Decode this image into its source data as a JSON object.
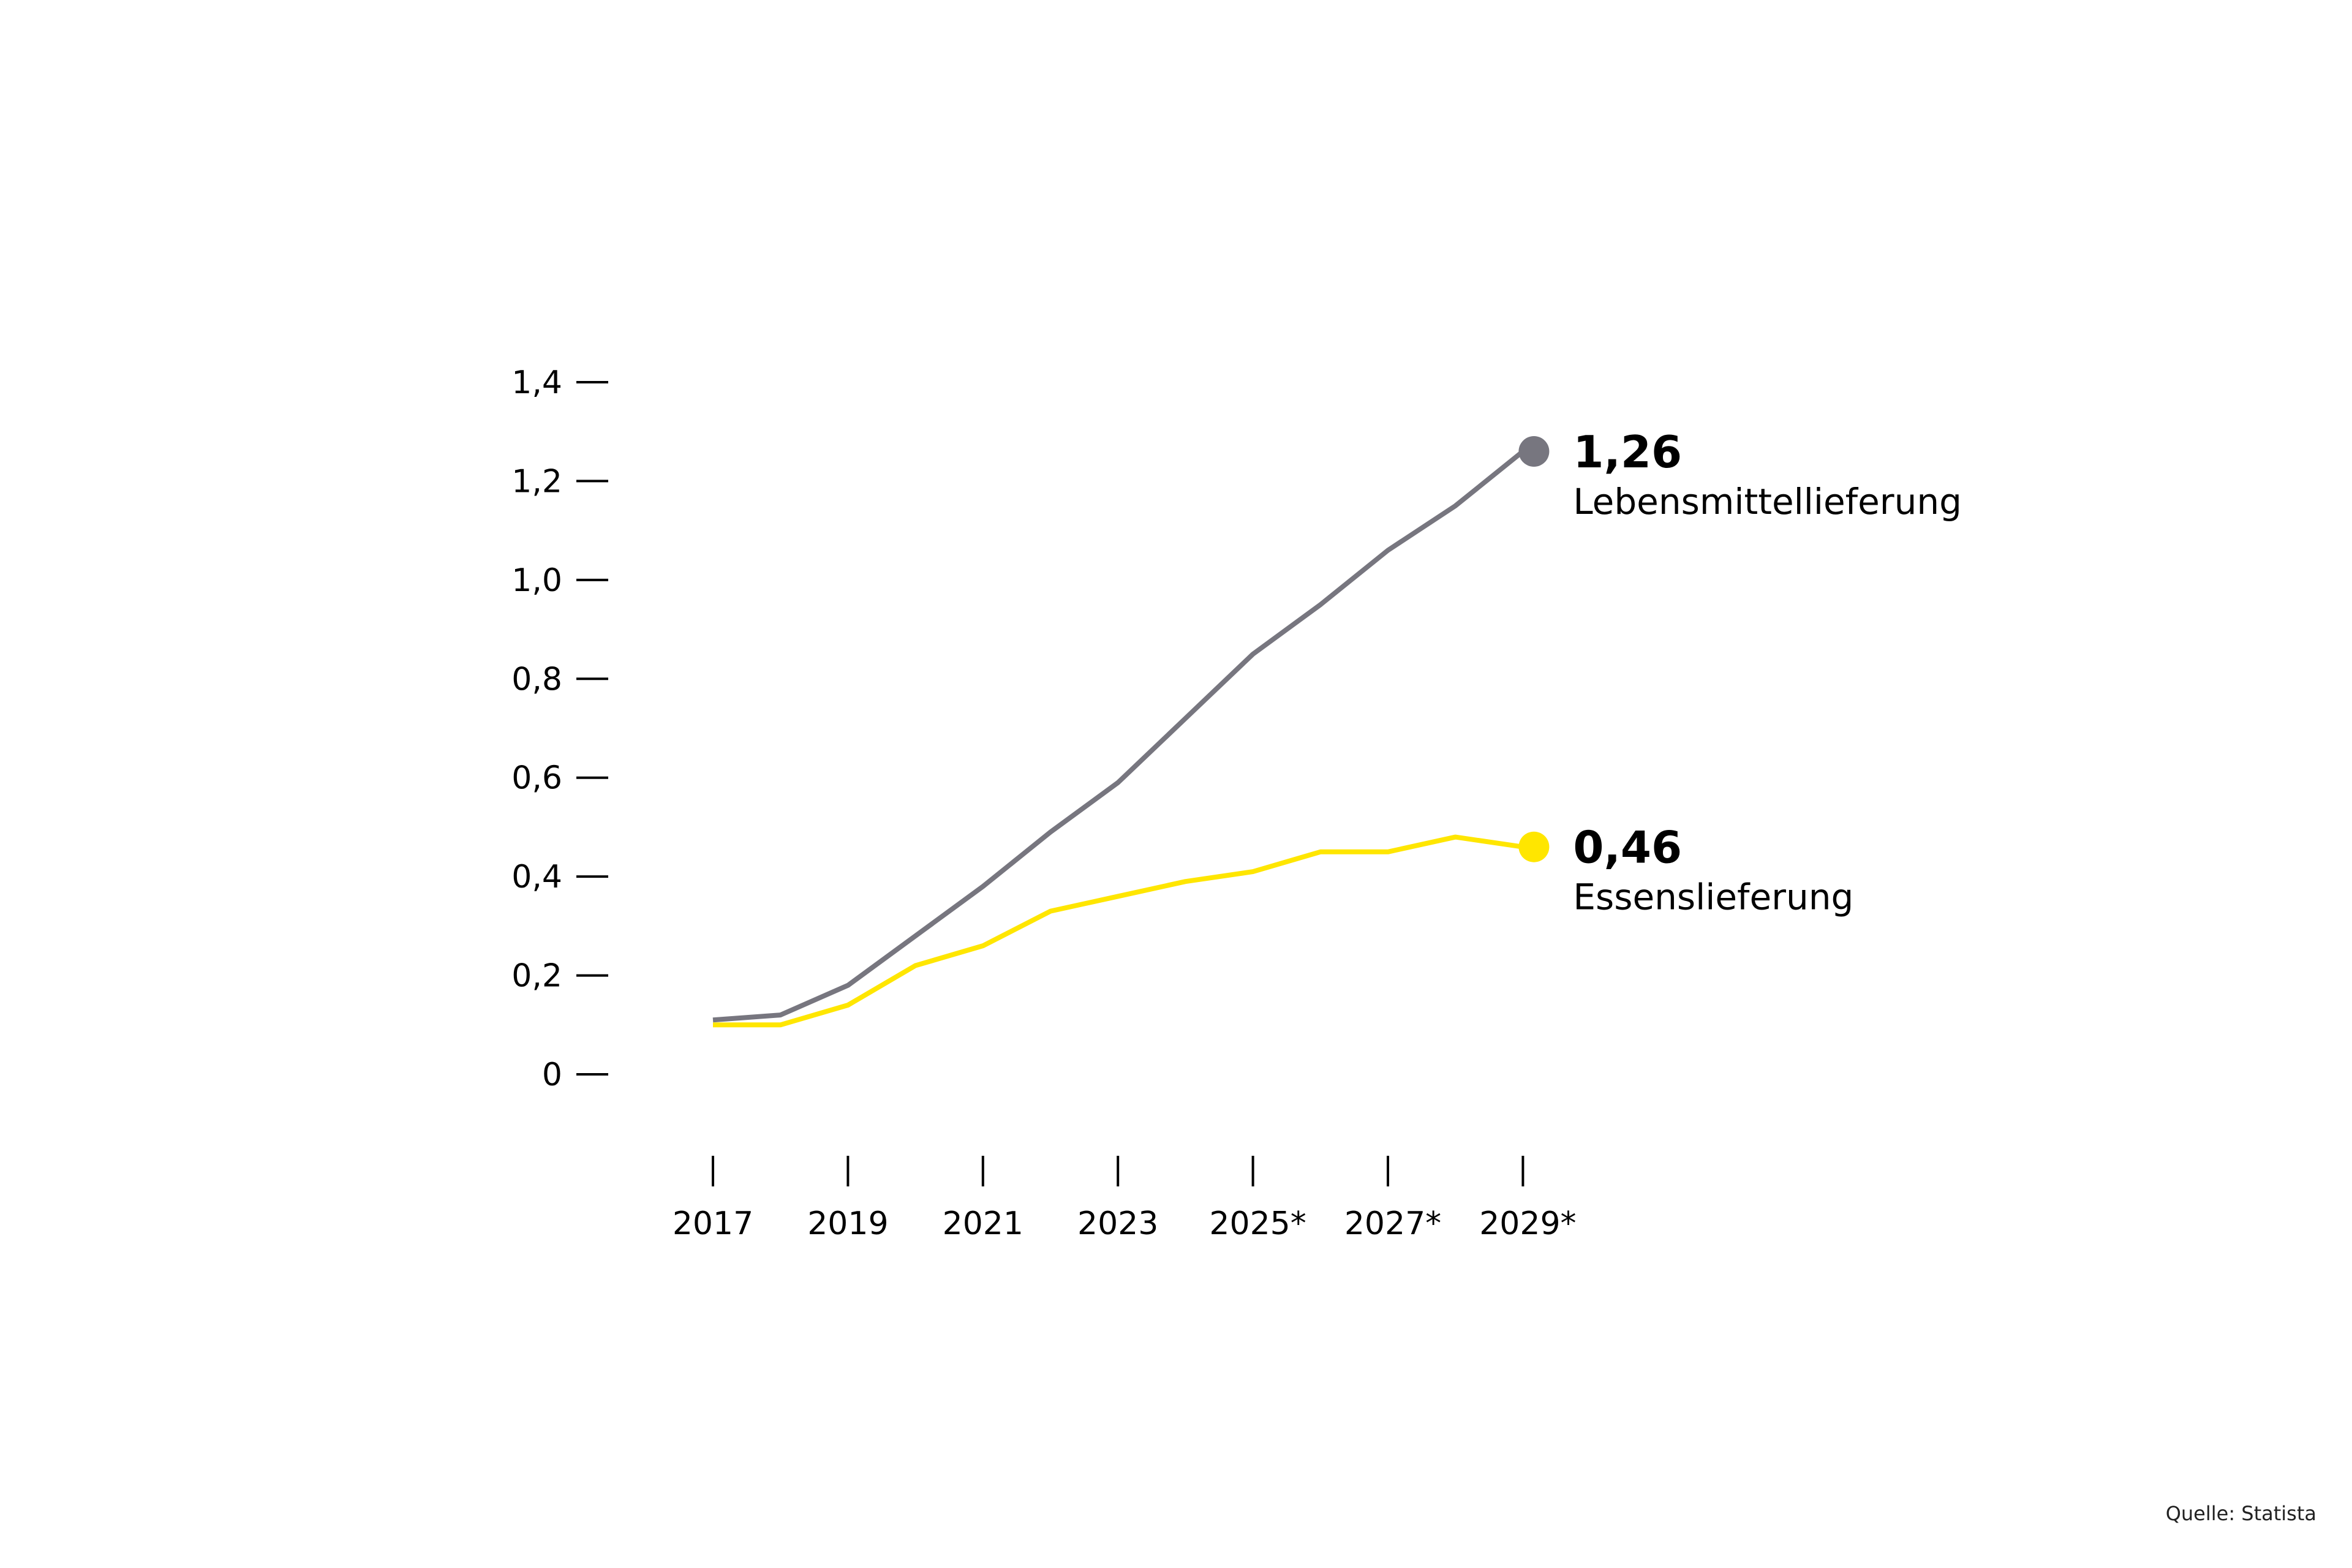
{
  "chart_data": {
    "type": "line",
    "title": "",
    "xlabel": "",
    "ylabel": "",
    "x": [
      2017,
      2018,
      2019,
      2020,
      2021,
      2022,
      2023,
      2024,
      2025,
      2026,
      2027,
      2028,
      2029
    ],
    "x_tick_labels": [
      "2017",
      "2019",
      "2021",
      "2023",
      "2025*",
      "2027*",
      "2029*"
    ],
    "y_tick_labels": [
      "0",
      "0,2",
      "0,4",
      "0,6",
      "0,8",
      "1,0",
      "1,2",
      "1,4"
    ],
    "ylim": [
      0,
      1.4
    ],
    "grid": false,
    "series": [
      {
        "name": "Lebensmittellieferung",
        "color": "#77767f",
        "end_label": "1,26",
        "values": [
          0.11,
          0.12,
          0.18,
          0.28,
          0.38,
          0.49,
          0.59,
          0.72,
          0.85,
          0.95,
          1.06,
          1.15,
          1.26
        ]
      },
      {
        "name": "Essenslieferung",
        "color": "#ffe600",
        "end_label": "0,46",
        "values": [
          0.1,
          0.1,
          0.14,
          0.22,
          0.26,
          0.33,
          0.36,
          0.39,
          0.41,
          0.45,
          0.45,
          0.48,
          0.46
        ]
      }
    ]
  },
  "source": "Quelle: Statista"
}
